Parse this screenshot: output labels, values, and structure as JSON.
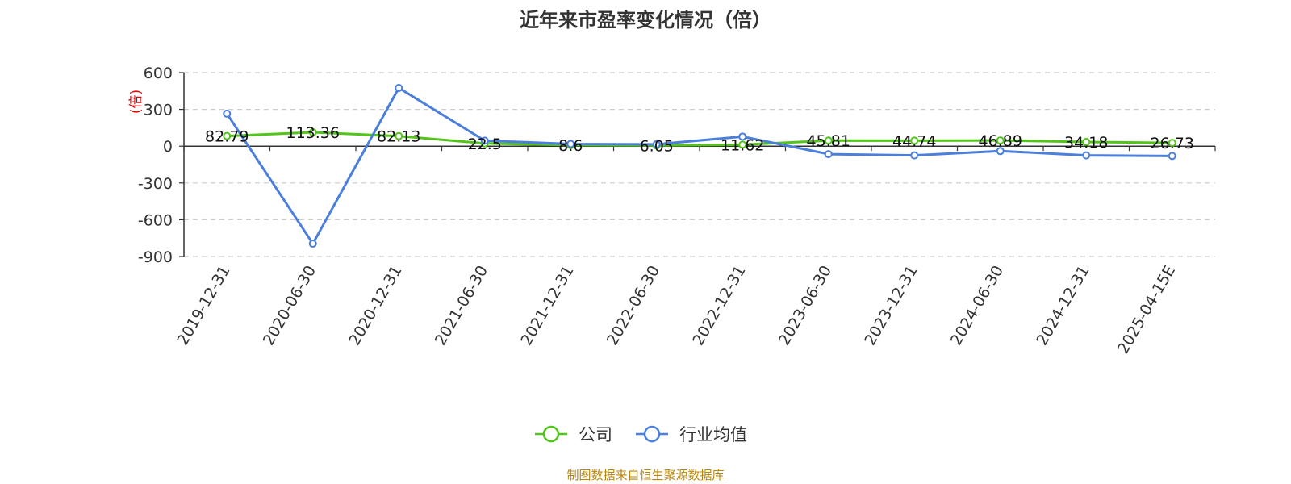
{
  "chart_data": {
    "type": "line",
    "title": "近年来市盈率变化情况（倍）",
    "ylabel": "(倍)",
    "xlabel": "",
    "categories": [
      "2019-12-31",
      "2020-06-30",
      "2020-12-31",
      "2021-06-30",
      "2021-12-31",
      "2022-06-30",
      "2022-12-31",
      "2023-06-30",
      "2023-12-31",
      "2024-06-30",
      "2024-12-31",
      "2025-04-15E"
    ],
    "ylim": [
      -900,
      600
    ],
    "yticks": [
      600,
      300,
      0,
      -300,
      -600,
      -900
    ],
    "grid": true,
    "legend_position": "bottom-center",
    "series": [
      {
        "name": "公司",
        "color": "#52c41a",
        "values": [
          82.79,
          113.36,
          82.13,
          22.5,
          8.6,
          6.05,
          11.62,
          45.81,
          44.74,
          46.89,
          34.18,
          26.73
        ],
        "labels": [
          "82.79",
          "113.36",
          "82.13",
          "22.5",
          "8.6",
          "6.05",
          "11.62",
          "45.81",
          "44.74",
          "46.89",
          "34.18",
          "26.73"
        ]
      },
      {
        "name": "行业均值",
        "color": "#4a7fdb",
        "values": [
          265,
          -795,
          475,
          45,
          18,
          15,
          78,
          -65,
          -75,
          -40,
          -75,
          -80
        ]
      }
    ]
  },
  "source_note": "制图数据来自恒生聚源数据库"
}
